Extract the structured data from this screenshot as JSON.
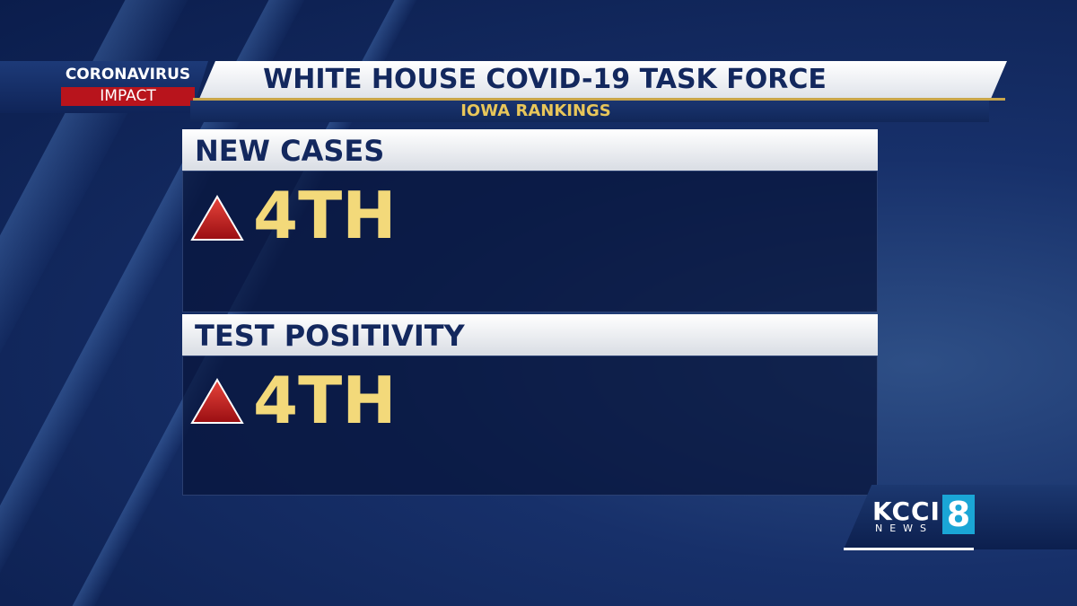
{
  "header": {
    "badge_top": "CORONAVIRUS",
    "badge_bottom": "IMPACT",
    "title": "WHITE HOUSE COVID-19 TASK FORCE",
    "subtitle": "IOWA RANKINGS"
  },
  "panels": [
    {
      "label": "NEW CASES",
      "value": "4TH"
    },
    {
      "label": "TEST POSITIVITY",
      "value": "4TH"
    }
  ],
  "logo": {
    "name": "KCCI",
    "sub": "NEWS",
    "number": "8"
  }
}
